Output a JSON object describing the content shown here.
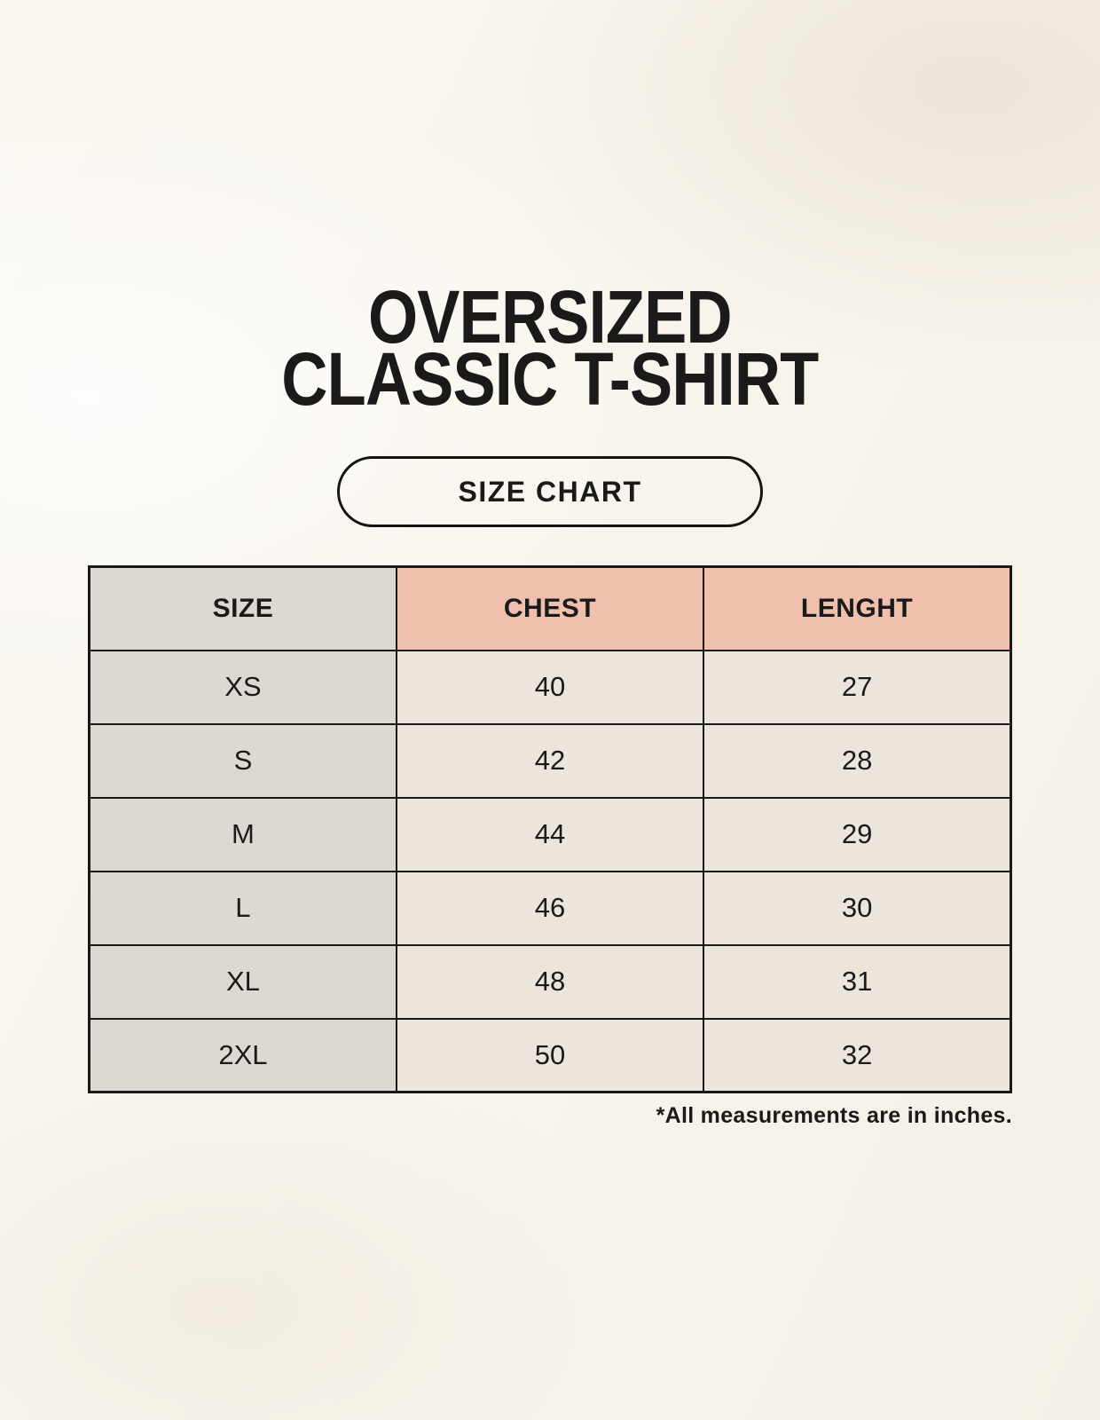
{
  "title": {
    "line1": "OVERSIZED",
    "line2": "CLASSIC T-SHIRT"
  },
  "size_chart_button": {
    "label": "SIZE CHART"
  },
  "table": {
    "headers": {
      "size": "SIZE",
      "chest": "CHEST",
      "length": "LENGHT"
    },
    "rows": [
      {
        "size": "XS",
        "chest": "40",
        "length": "27"
      },
      {
        "size": "S",
        "chest": "42",
        "length": "28"
      },
      {
        "size": "M",
        "chest": "44",
        "length": "29"
      },
      {
        "size": "L",
        "chest": "46",
        "length": "30"
      },
      {
        "size": "XL",
        "chest": "48",
        "length": "31"
      },
      {
        "size": "2XL",
        "chest": "50",
        "length": "32"
      }
    ]
  },
  "footnote": "*All measurements are in inches.",
  "colors": {
    "background": "#f8f4ec",
    "header_size_bg": "#ddd8d2",
    "header_measure_bg": "#eec0ad",
    "row_label_bg": "#ddd8d2",
    "cell_bg": "#ebe5db",
    "border": "#191919",
    "text": "#1a1a1a"
  },
  "chart_data": {
    "type": "table",
    "title": "OVERSIZED CLASSIC T-SHIRT — SIZE CHART",
    "columns": [
      "SIZE",
      "CHEST",
      "LENGHT"
    ],
    "rows": [
      [
        "XS",
        40,
        27
      ],
      [
        "S",
        42,
        28
      ],
      [
        "M",
        44,
        29
      ],
      [
        "L",
        46,
        30
      ],
      [
        "XL",
        48,
        31
      ],
      [
        "2XL",
        50,
        32
      ]
    ],
    "note": "*All measurements are in inches."
  }
}
